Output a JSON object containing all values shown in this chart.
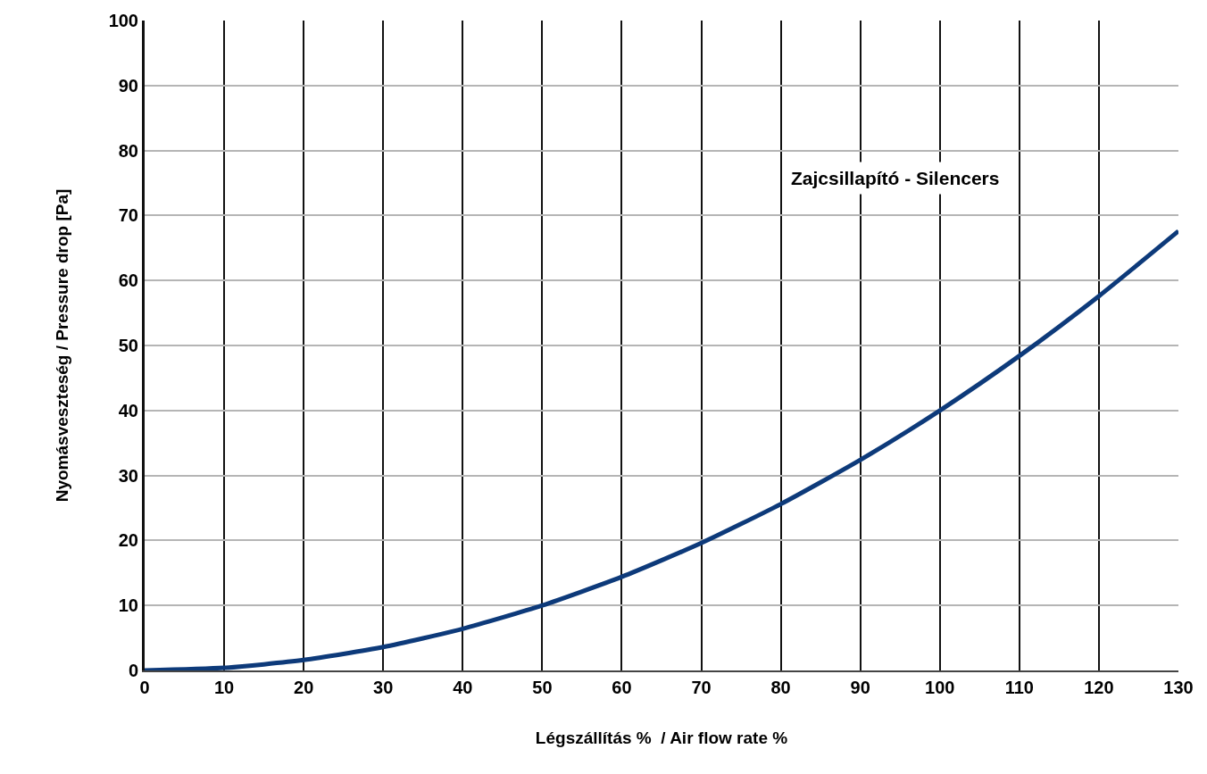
{
  "chart_data": {
    "type": "line",
    "xlabel": "Légszállítás %  / Air flow rate %",
    "ylabel": "Nyomásveszteség / Pressure drop [Pa]",
    "annotations": [
      "Zajcsillapító - Silencers"
    ],
    "x": [
      0,
      10,
      20,
      30,
      40,
      50,
      60,
      70,
      80,
      90,
      100,
      110,
      120,
      130
    ],
    "series": [
      {
        "color": "#0d3a7a",
        "values": [
          0,
          0.4,
          1.6,
          3.6,
          6.4,
          10,
          14.4,
          19.6,
          25.6,
          32.4,
          40,
          48.4,
          57.6,
          67.6
        ]
      }
    ],
    "xlim": [
      0,
      130
    ],
    "ylim": [
      0,
      100
    ],
    "xticks": [
      0,
      10,
      20,
      30,
      40,
      50,
      60,
      70,
      80,
      90,
      100,
      110,
      120,
      130
    ],
    "yticks": [
      0,
      10,
      20,
      30,
      40,
      50,
      60,
      70,
      80,
      90,
      100
    ],
    "grid": true,
    "marker": "none",
    "line_style": "solid"
  }
}
